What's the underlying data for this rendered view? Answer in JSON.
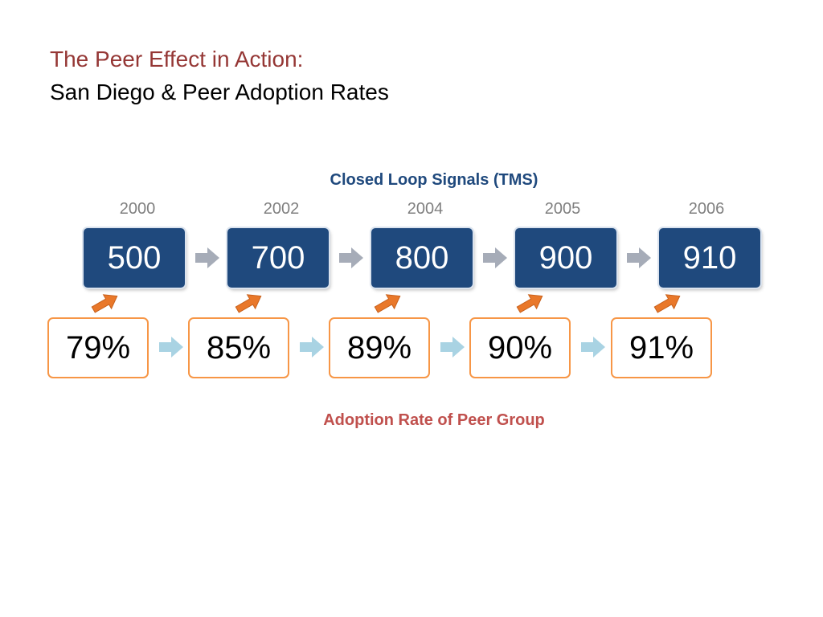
{
  "title": {
    "line1": "The Peer Effect in Action:",
    "line2": "San Diego & Peer Adoption Rates"
  },
  "top_label": "Closed Loop Signals (TMS)",
  "bottom_label": "Adoption Rate of Peer Group",
  "years": [
    "2000",
    "2002",
    "2004",
    "2005",
    "2006"
  ],
  "signal_counts": [
    "500",
    "700",
    "800",
    "900",
    "910"
  ],
  "adoption_rates": [
    "79%",
    "85%",
    "89%",
    "90%",
    "91%"
  ],
  "colors": {
    "title_accent": "#953735",
    "count_box_fill": "#1f497d",
    "top_label": "#1f497d",
    "bottom_label": "#c0504d",
    "rate_box_border": "#f79646",
    "gray_arrow": "#a6acb8",
    "blue_arrow": "#a9d3e3",
    "orange_arrow": "#e9782a"
  }
}
